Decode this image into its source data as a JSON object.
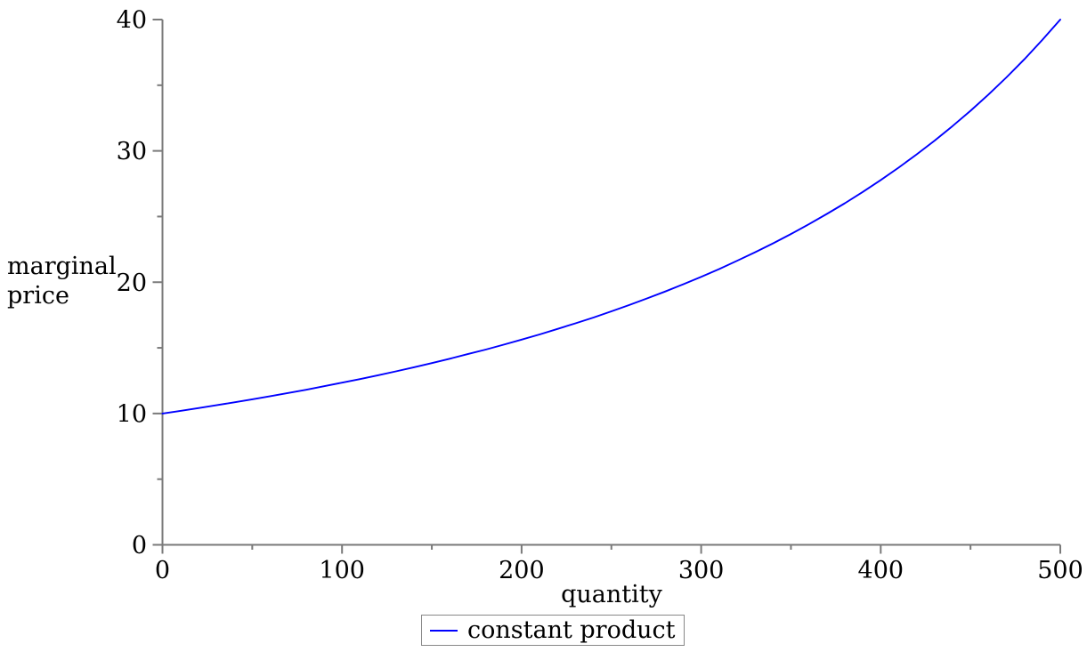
{
  "chart_data": {
    "type": "line",
    "title": "",
    "xlabel": "quantity",
    "ylabel": "marginal price",
    "ylabel_lines": [
      "marginal",
      "price"
    ],
    "xlim": [
      0,
      500
    ],
    "ylim": [
      0,
      40
    ],
    "grid": false,
    "x_major_ticks": [
      0,
      100,
      200,
      300,
      400,
      500
    ],
    "x_minor_ticks": [
      50,
      150,
      250,
      350,
      450
    ],
    "y_major_ticks": [
      0,
      10,
      20,
      30,
      40
    ],
    "y_minor_ticks": [
      5,
      15,
      25,
      35
    ],
    "axis_color": "#7a7a7a",
    "tick_label_color": "#000000",
    "legend_position": "bottom-center",
    "legend_border_color": "#878787",
    "series": [
      {
        "name": "constant product",
        "color": "#0000ff",
        "x": [
          0,
          10,
          20,
          30,
          40,
          50,
          60,
          70,
          80,
          90,
          100,
          110,
          120,
          130,
          140,
          150,
          160,
          170,
          180,
          190,
          200,
          210,
          220,
          230,
          240,
          250,
          260,
          270,
          280,
          290,
          300,
          310,
          320,
          330,
          340,
          350,
          360,
          370,
          380,
          390,
          400,
          410,
          420,
          430,
          440,
          450,
          460,
          470,
          480,
          490,
          500
        ],
        "y": [
          10.0,
          10.2,
          10.41,
          10.63,
          10.85,
          11.08,
          11.32,
          11.56,
          11.81,
          12.08,
          12.35,
          12.62,
          12.91,
          13.21,
          13.52,
          13.84,
          14.17,
          14.52,
          14.87,
          15.24,
          15.63,
          16.02,
          16.44,
          16.87,
          17.31,
          17.78,
          18.26,
          18.77,
          19.29,
          19.84,
          20.41,
          21.0,
          21.63,
          22.28,
          22.96,
          23.67,
          24.41,
          25.2,
          26.01,
          26.87,
          27.78,
          28.73,
          29.73,
          30.78,
          31.89,
          33.06,
          34.29,
          35.6,
          36.98,
          38.45,
          40.0
        ]
      }
    ]
  }
}
